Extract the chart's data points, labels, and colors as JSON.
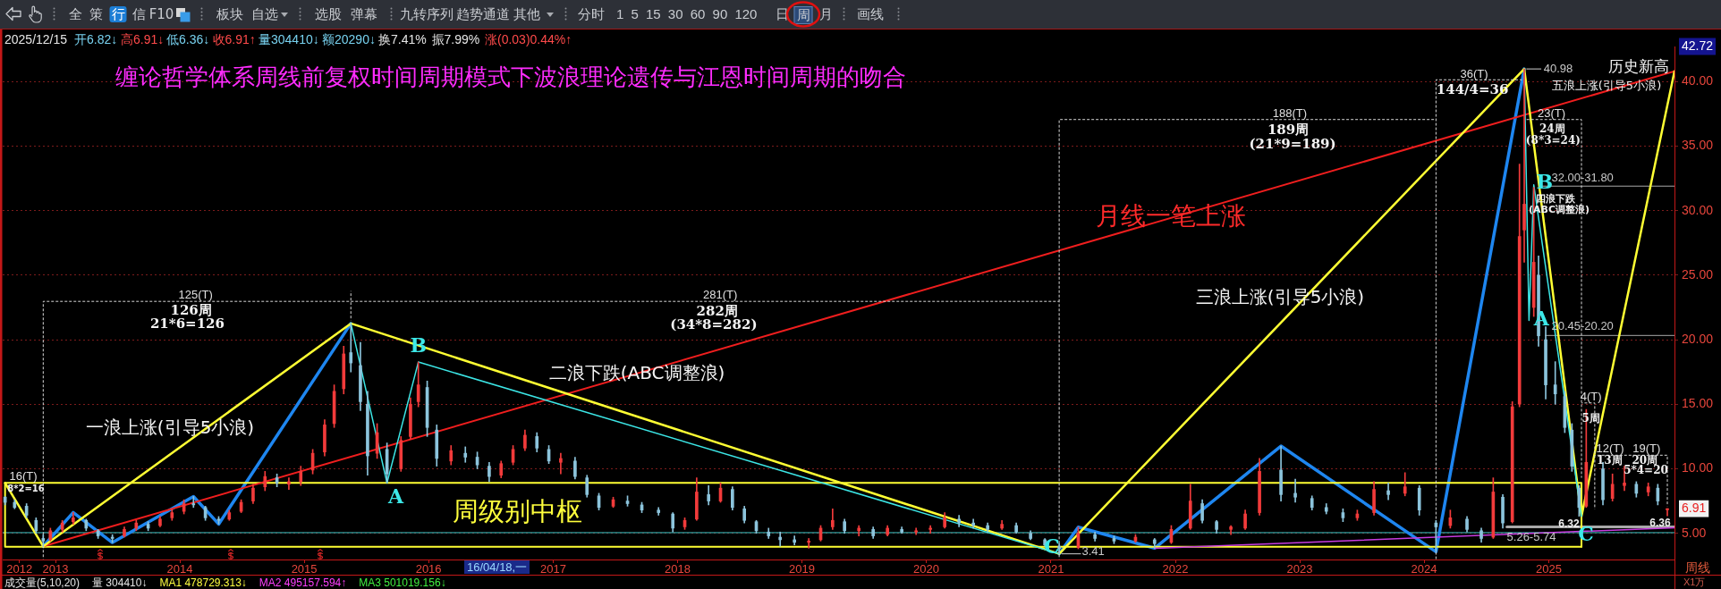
{
  "chart_data": {
    "type": "candlestick",
    "title": "缠论哲学体系周线前复权时间周期模式下波浪理论遗传与江恩时间周期的吻合",
    "x": [
      "2012-08-06",
      "2012-09-03",
      "2012-10-08",
      "2012-11-05",
      "2012-11-26",
      "2012-12-17",
      "2013-01-21",
      "2013-02-22",
      "2013-04-01",
      "2013-05-06",
      "2013-06-17",
      "2013-07-22",
      "2013-08-26",
      "2013-09-30",
      "2013-11-04",
      "2013-12-09",
      "2014-01-13",
      "2014-02-10",
      "2014-03-17",
      "2014-04-25",
      "2014-05-26",
      "2014-06-30",
      "2014-08-04",
      "2014-09-08",
      "2014-10-13",
      "2014-11-17",
      "2014-12-22",
      "2015-01-26",
      "2015-03-02",
      "2015-03-30",
      "2015-04-27",
      "2015-05-18",
      "2015-06-15",
      "2015-07-06",
      "2015-08-03",
      "2015-09-01",
      "2015-10-12",
      "2015-11-09",
      "2015-12-02",
      "2015-12-28",
      "2016-01-25",
      "2016-03-07",
      "2016-04-18",
      "2016-05-23",
      "2016-06-27",
      "2016-08-01",
      "2016-09-05",
      "2016-10-10",
      "2016-11-14",
      "2016-12-19",
      "2017-01-23",
      "2017-03-06",
      "2017-04-10",
      "2017-05-15",
      "2017-06-26",
      "2017-08-07",
      "2017-09-18",
      "2017-11-06",
      "2017-12-18",
      "2018-01-22",
      "2018-02-26",
      "2018-04-02",
      "2018-05-07",
      "2018-06-11",
      "2018-07-16",
      "2018-08-20",
      "2018-09-25",
      "2018-10-29",
      "2018-12-10",
      "2019-01-21",
      "2019-02-25",
      "2019-04-01",
      "2019-05-06",
      "2019-06-17",
      "2019-07-29",
      "2019-09-09",
      "2019-10-21",
      "2019-12-02",
      "2020-01-13",
      "2020-02-24",
      "2020-04-06",
      "2020-05-18",
      "2020-06-29",
      "2020-08-10",
      "2020-09-21",
      "2020-11-02",
      "2020-12-14",
      "2021-01-25",
      "2021-03-22",
      "2021-05-10",
      "2021-07-05",
      "2021-09-06",
      "2021-11-01",
      "2021-12-20",
      "2022-02-14",
      "2022-03-21",
      "2022-05-02",
      "2022-06-13",
      "2022-07-25",
      "2022-09-05",
      "2022-11-07",
      "2022-12-19",
      "2023-02-06",
      "2023-03-20",
      "2023-05-08",
      "2023-06-19",
      "2023-08-07",
      "2023-09-18",
      "2023-11-06",
      "2023-12-18",
      "2024-02-05",
      "2024-03-18",
      "2024-05-06",
      "2024-06-17",
      "2024-07-22",
      "2024-08-19",
      "2024-09-16",
      "2024-10-07",
      "2024-10-21",
      "2024-11-18",
      "2024-12-02",
      "2024-12-23",
      "2025-01-20",
      "2025-02-17",
      "2025-03-10",
      "2025-03-31",
      "2025-04-21",
      "2025-06-09",
      "2025-07-07",
      "2025-08-11",
      "2025-09-15",
      "2025-10-20",
      "2025-11-17",
      "2025-12-15"
    ],
    "ohlc": [
      [
        7.8,
        7.85,
        7.2,
        7.4
      ],
      [
        7.4,
        7.6,
        6.9,
        7.0
      ],
      [
        7.1,
        7.3,
        6.2,
        6.4
      ],
      [
        6.0,
        6.2,
        5.0,
        5.2
      ],
      [
        4.6,
        4.9,
        3.99,
        4.4
      ],
      [
        4.5,
        5.4,
        4.4,
        5.2
      ],
      [
        5.3,
        6.0,
        5.1,
        5.8
      ],
      [
        5.9,
        6.62,
        5.7,
        6.2
      ],
      [
        6.0,
        6.1,
        5.2,
        5.4
      ],
      [
        5.2,
        5.3,
        4.6,
        4.8
      ],
      [
        4.7,
        4.9,
        4.28,
        4.6
      ],
      [
        4.8,
        5.5,
        4.7,
        5.3
      ],
      [
        5.4,
        6.0,
        5.2,
        5.8
      ],
      [
        5.7,
        5.9,
        5.2,
        5.4
      ],
      [
        5.6,
        6.3,
        5.5,
        6.1
      ],
      [
        6.2,
        6.9,
        6.0,
        6.6
      ],
      [
        6.7,
        7.6,
        6.5,
        7.3
      ],
      [
        7.3,
        7.85,
        7.0,
        7.2
      ],
      [
        7.0,
        7.1,
        6.0,
        6.2
      ],
      [
        6.1,
        6.3,
        5.71,
        6.0
      ],
      [
        6.1,
        6.8,
        6.0,
        6.6
      ],
      [
        6.7,
        7.6,
        6.6,
        7.4
      ],
      [
        7.5,
        8.8,
        7.3,
        8.5
      ],
      [
        8.6,
        9.8,
        8.3,
        9.4
      ],
      [
        9.3,
        9.6,
        8.6,
        8.9
      ],
      [
        8.8,
        9.3,
        8.4,
        9.0
      ],
      [
        9.0,
        10.2,
        8.7,
        9.8
      ],
      [
        9.9,
        11.5,
        9.6,
        11.2
      ],
      [
        11.3,
        13.8,
        11.0,
        13.4
      ],
      [
        13.5,
        16.5,
        13.2,
        16.0
      ],
      [
        16.2,
        19.5,
        15.8,
        18.9
      ],
      [
        19.0,
        21.26,
        17.5,
        18.2
      ],
      [
        18.0,
        19.8,
        14.5,
        15.2
      ],
      [
        15.0,
        16.0,
        9.5,
        11.0
      ],
      [
        11.2,
        13.5,
        10.8,
        12.8
      ],
      [
        11.5,
        12.0,
        8.9,
        9.6
      ],
      [
        10.0,
        12.5,
        9.8,
        12.2
      ],
      [
        12.5,
        15.5,
        12.3,
        15.0
      ],
      [
        15.2,
        18.27,
        14.8,
        16.5
      ],
      [
        16.3,
        16.8,
        12.5,
        13.2
      ],
      [
        13.0,
        13.4,
        10.2,
        10.8
      ],
      [
        10.6,
        11.8,
        10.3,
        11.4
      ],
      [
        11.2,
        11.7,
        10.5,
        10.9
      ],
      [
        10.9,
        11.3,
        10.0,
        10.3
      ],
      [
        10.2,
        10.5,
        9.0,
        9.4
      ],
      [
        9.5,
        10.6,
        9.3,
        10.4
      ],
      [
        10.5,
        11.8,
        10.3,
        11.5
      ],
      [
        11.6,
        13.0,
        11.4,
        12.6
      ],
      [
        12.5,
        12.8,
        11.3,
        11.6
      ],
      [
        11.5,
        11.8,
        10.4,
        10.6
      ],
      [
        10.5,
        11.2,
        9.6,
        10.8
      ],
      [
        10.6,
        10.9,
        9.2,
        9.4
      ],
      [
        9.3,
        9.5,
        7.8,
        8.0
      ],
      [
        7.9,
        8.1,
        6.8,
        7.0
      ],
      [
        7.1,
        7.8,
        7.0,
        7.6
      ],
      [
        7.5,
        7.9,
        7.1,
        7.3
      ],
      [
        7.2,
        7.4,
        6.6,
        6.8
      ],
      [
        6.8,
        7.0,
        6.4,
        6.6
      ],
      [
        6.5,
        6.6,
        5.1,
        5.4
      ],
      [
        5.5,
        6.2,
        5.3,
        6.0
      ],
      [
        6.1,
        9.3,
        6.0,
        8.2
      ],
      [
        8.0,
        8.7,
        7.2,
        7.5
      ],
      [
        7.5,
        8.9,
        7.4,
        8.5
      ],
      [
        8.4,
        8.6,
        6.8,
        7.0
      ],
      [
        6.9,
        7.1,
        5.8,
        6.0
      ],
      [
        5.9,
        6.0,
        5.0,
        5.2
      ],
      [
        5.1,
        5.4,
        4.6,
        4.8
      ],
      [
        4.7,
        5.1,
        4.0,
        4.5
      ],
      [
        4.5,
        4.8,
        4.1,
        4.3
      ],
      [
        4.3,
        4.6,
        3.85,
        4.4
      ],
      [
        4.5,
        5.6,
        4.4,
        5.4
      ],
      [
        5.5,
        6.9,
        5.3,
        6.0
      ],
      [
        5.9,
        6.1,
        5.0,
        5.2
      ],
      [
        5.2,
        5.6,
        4.8,
        5.4
      ],
      [
        5.3,
        5.5,
        4.6,
        4.8
      ],
      [
        4.9,
        5.6,
        4.8,
        5.4
      ],
      [
        5.3,
        5.5,
        5.0,
        5.1
      ],
      [
        5.1,
        5.4,
        4.9,
        5.2
      ],
      [
        5.3,
        5.6,
        5.0,
        5.4
      ],
      [
        5.5,
        6.6,
        5.4,
        6.2
      ],
      [
        6.1,
        6.4,
        5.5,
        5.8
      ],
      [
        5.8,
        6.1,
        5.4,
        5.6
      ],
      [
        5.6,
        5.8,
        5.1,
        5.3
      ],
      [
        5.4,
        6.0,
        5.3,
        5.7
      ],
      [
        5.6,
        5.8,
        5.0,
        5.1
      ],
      [
        5.0,
        5.2,
        4.5,
        4.6
      ],
      [
        4.5,
        4.6,
        4.0,
        4.1
      ],
      [
        4.0,
        4.2,
        3.41,
        3.8
      ],
      [
        3.9,
        5.48,
        3.8,
        5.0
      ],
      [
        4.9,
        5.1,
        4.4,
        4.6
      ],
      [
        4.6,
        4.8,
        4.2,
        4.4
      ],
      [
        4.4,
        4.9,
        4.3,
        4.7
      ],
      [
        4.5,
        4.6,
        3.85,
        4.2
      ],
      [
        4.3,
        5.6,
        4.2,
        5.3
      ],
      [
        5.4,
        8.8,
        5.3,
        7.5
      ],
      [
        7.3,
        7.6,
        5.8,
        6.0
      ],
      [
        5.9,
        6.0,
        5.0,
        5.3
      ],
      [
        5.3,
        5.6,
        4.9,
        5.5
      ],
      [
        5.4,
        6.8,
        5.3,
        6.5
      ],
      [
        6.6,
        10.8,
        6.4,
        9.8
      ],
      [
        9.9,
        11.76,
        7.5,
        8.0
      ],
      [
        8.1,
        9.2,
        7.4,
        7.8
      ],
      [
        7.7,
        7.9,
        6.8,
        7.0
      ],
      [
        7.0,
        7.3,
        6.5,
        6.7
      ],
      [
        6.6,
        6.9,
        5.9,
        6.2
      ],
      [
        6.2,
        6.8,
        6.0,
        6.5
      ],
      [
        6.6,
        9.0,
        6.4,
        8.4
      ],
      [
        8.3,
        8.9,
        7.6,
        8.0
      ],
      [
        8.1,
        9.7,
        7.9,
        8.6
      ],
      [
        8.5,
        8.7,
        6.4,
        6.8
      ],
      [
        5.8,
        6.0,
        3.57,
        5.5
      ],
      [
        5.6,
        6.8,
        5.4,
        6.2
      ],
      [
        6.1,
        6.3,
        5.1,
        5.3
      ],
      [
        5.2,
        5.4,
        4.3,
        4.6
      ],
      [
        4.7,
        9.3,
        4.6,
        8.2
      ],
      [
        7.8,
        8.0,
        5.4,
        5.8
      ],
      [
        5.9,
        15.2,
        5.8,
        14.8
      ],
      [
        15.0,
        33.6,
        14.8,
        28.0
      ],
      [
        28.5,
        40.98,
        26.0,
        30.5
      ],
      [
        22.5,
        31.8,
        21.8,
        26.0
      ],
      [
        25.0,
        26.5,
        19.5,
        20.3
      ],
      [
        20.0,
        21.0,
        15.4,
        16.5
      ],
      [
        16.5,
        18.3,
        15.0,
        15.8
      ],
      [
        15.6,
        16.0,
        12.8,
        13.2
      ],
      [
        13.0,
        13.5,
        9.8,
        10.2
      ],
      [
        8.5,
        8.7,
        6.32,
        7.0
      ],
      [
        7.1,
        14.6,
        7.0,
        10.5
      ],
      [
        10.0,
        10.5,
        7.2,
        7.6
      ],
      [
        7.7,
        9.6,
        7.5,
        8.8
      ],
      [
        8.7,
        10.2,
        8.3,
        8.9
      ],
      [
        8.8,
        9.0,
        7.8,
        8.1
      ],
      [
        8.2,
        8.9,
        7.9,
        8.6
      ],
      [
        8.5,
        8.8,
        7.2,
        7.5
      ],
      [
        6.82,
        6.91,
        6.36,
        6.91
      ]
    ],
    "series": [
      {
        "type": "line",
        "color": "#d8d8d8",
        "line_style": "dotted",
        "x": [
          "2012-11-26",
          "2012-11-26",
          "2021-01-25",
          "2021-01-25"
        ],
        "values": [
          3.0,
          22.97,
          22.97,
          3.0
        ]
      },
      {
        "type": "line",
        "color": "#d8d8d8",
        "line_style": "dotted",
        "x": [
          "2021-01-25",
          "2021-01-25",
          "2024-02-05"
        ],
        "values": [
          22.97,
          37.06,
          37.06
        ]
      },
      {
        "type": "line",
        "color": "#d8d8d8",
        "line_style": "dotted",
        "x": [
          "2024-02-05",
          "2024-02-05",
          "2024-10-14"
        ],
        "values": [
          3.0,
          40.14,
          40.14
        ]
      },
      {
        "type": "line",
        "color": "#d8d8d8",
        "line_style": "dotted",
        "x": [
          "2024-10-28",
          "2025-04-07",
          "2025-04-07"
        ],
        "values": [
          37.06,
          37.06,
          9.3
        ]
      },
      {
        "type": "line",
        "color": "#d8d8d8",
        "line_style": "dotted",
        "x": [
          "2015-05-18",
          "2015-05-18"
        ],
        "values": [
          23.77,
          21.5
        ]
      },
      {
        "type": "line",
        "color": "#d8d8d8",
        "line_style": "dotted",
        "x": [
          "2025-04-07",
          "2025-05-16",
          "2025-05-16"
        ],
        "values": [
          15.1,
          15.1,
          6.87
        ]
      },
      {
        "type": "line",
        "color": "#d8d8d8",
        "line_style": "dotted",
        "x": [
          "2025-05-16",
          "2025-12-15",
          "2025-12-15"
        ],
        "values": [
          11.05,
          11.05,
          7.1
        ]
      },
      {
        "type": "line",
        "color": "#d0d0d0",
        "x": [
          "2024-10-28",
          "2024-12-09"
        ],
        "values": [
          40.98,
          40.98
        ]
      },
      {
        "type": "line",
        "color": "#d0d0d0",
        "x": [
          "2021-02-01",
          "2021-03-29"
        ],
        "values": [
          3.41,
          3.41
        ]
      },
      {
        "type": "line",
        "color": "#3ce6e6",
        "x": [
          "2024-10-21",
          "2024-11-04",
          "2024-11-18",
          "2025-04-07"
        ],
        "values": [
          40.98,
          21.5,
          32.0,
          6.32
        ]
      },
      {
        "type": "line",
        "color": "#3ce6e6",
        "x": [
          "2015-05-18",
          "2015-09-01",
          "2015-12-02",
          "2021-01-25"
        ],
        "values": [
          21.26,
          8.9,
          18.27,
          3.41
        ]
      },
      {
        "type": "line",
        "color": "#ffff33",
        "x": [
          "2012-08-06",
          "2012-11-26",
          "2015-05-18",
          "2021-01-25",
          "2024-10-21",
          "2025-04-07",
          "2026-01-05"
        ],
        "values": [
          8.9,
          3.99,
          21.26,
          3.41,
          40.98,
          6.32,
          40.8
        ]
      },
      {
        "type": "line",
        "color": "#f01e1e",
        "x": [
          "2012-11-26",
          "2026-01-05"
        ],
        "values": [
          3.99,
          40.8
        ]
      },
      {
        "type": "line",
        "color": "#c83ce0",
        "x": [
          "2021-11-01",
          "2026-01-05"
        ],
        "values": [
          3.84,
          5.43
        ]
      },
      {
        "type": "line",
        "color": "#ffff33",
        "x": [
          "2012-08-06",
          "2025-04-07",
          "2025-04-07"
        ],
        "values": [
          8.9,
          8.9,
          3.95
        ]
      },
      {
        "type": "line",
        "color": "#ffff33",
        "x": [
          "2012-08-06",
          "2012-08-06",
          "2025-04-07"
        ],
        "values": [
          8.9,
          3.95,
          3.95
        ]
      },
      {
        "type": "line",
        "color": "#1e86f0",
        "x": [
          "2012-11-26",
          "2013-02-22",
          "2013-06-17",
          "2014-02-10",
          "2014-04-25",
          "2015-05-18"
        ],
        "values": [
          3.99,
          6.62,
          4.28,
          7.85,
          5.71,
          21.26
        ]
      },
      {
        "type": "line",
        "color": "#1e86f0",
        "x": [
          "2021-01-25",
          "2021-03-22",
          "2021-11-01",
          "2022-11-07",
          "2024-02-05",
          "2024-10-21"
        ],
        "values": [
          3.41,
          5.48,
          3.85,
          11.76,
          3.57,
          40.98
        ]
      },
      {
        "type": "line",
        "color": "#a8a8a8",
        "x": [
          "2024-12-05",
          "2026-01-05"
        ],
        "values": [
          31.9,
          31.9
        ]
      },
      {
        "type": "line",
        "color": "#a8a8a8",
        "x": [
          "2024-12-21",
          "2026-01-05"
        ],
        "values": [
          20.33,
          20.33
        ]
      },
      {
        "type": "line",
        "color": "#a8a8a8",
        "x": [
          "2024-08-31",
          "2026-01-05"
        ],
        "values": [
          5.5,
          5.5
        ]
      }
    ],
    "xlim": [
      "2012-07-30",
      "2026-01-05"
    ],
    "xticks": [
      {
        "value": "2012-09-17",
        "label": "2012"
      },
      "2013",
      "2014",
      "2015",
      "2016",
      "2017",
      "2018",
      "2019",
      "2020",
      "2021",
      "2022",
      "2023",
      "2024",
      "2025"
    ],
    "ylim": [
      2.97,
      42.72
    ],
    "yticks": [
      {
        "value": 5,
        "label": "5.00"
      },
      {
        "value": 10,
        "label": "10.00"
      },
      {
        "value": 15,
        "label": "15.00"
      },
      {
        "value": 20,
        "label": "20.00"
      },
      {
        "value": 25,
        "label": "25.00"
      },
      {
        "value": 30,
        "label": "30.00"
      },
      {
        "value": 35,
        "label": "35.00"
      },
      {
        "value": 40,
        "label": "40.00"
      },
      {
        "value": 42.72,
        "label": "42.72"
      },
      {
        "value": 6.91,
        "label": "6.91"
      }
    ],
    "grid": "y",
    "legend": false,
    "ref_lines": [
      {
        "axis": "y",
        "value": 5.05,
        "color": "#3cc8c8"
      }
    ],
    "annotations": [
      "全",
      "策",
      "行",
      "信",
      "F10",
      "板块",
      "自选",
      "选股",
      "弹幕",
      "九转序列",
      "趋势通道",
      "其他",
      "分时",
      "1 5 15 30 60 90 120",
      "日",
      "周",
      "月",
      "画线",
      "2025/12/15",
      "开6.82↓",
      "高6.91↓",
      "低6.36↓",
      "收6.91↑",
      "量304410↓",
      "额20290↓",
      "换7.41%",
      "振7.99%",
      "涨(0.03)0.44%↑",
      "周线",
      "X1万",
      "16/04/18,一",
      "成交量(5,10,20)",
      "量 304410↓",
      "MA1 478729.313↓",
      "MA2 495157.594↑",
      "MA3 501019.156↓",
      "一浪上涨(引导5小浪)",
      "二浪下跌(ABC调整浪)",
      "三浪上涨(引导5小浪)",
      "五浪上涨(引导5小浪)",
      "历史新高",
      "四浪下跌",
      "(ABC调整浪)",
      "周级别中枢",
      "16(T)",
      "8*2=16",
      {
        "text": "月线一笔上涨",
        "x": "2021-12-19",
        "y": 29.44
      },
      {
        "text": "A",
        "x": "2015-09-01",
        "y": 8.9
      },
      {
        "text": "B",
        "x": "2015-12-02",
        "y": 18.27
      },
      {
        "text": "C",
        "x": "2021-01-25",
        "y": 3.41
      },
      {
        "text": "A",
        "x": "2024-11-04",
        "y": 21.5
      },
      {
        "text": "B",
        "x": "2024-11-18",
        "y": 32.0
      },
      {
        "text": "C",
        "x": "2025-04-07",
        "y": 6.32
      },
      {
        "text": "40.98",
        "x": "2024-10-21",
        "y": 40.98
      },
      {
        "text": "3.41",
        "x": "2021-01-25",
        "y": 3.41
      },
      {
        "text": "6.32",
        "x": "2025-04-07",
        "y": 6.32
      },
      {
        "text": "6.36",
        "x": "2025-12-15",
        "y": 6.36
      },
      {
        "text": "32.00-31.80",
        "x": "2025-04-10",
        "y": 31.9
      },
      {
        "text": "20.45-20.20",
        "x": "2025-04-10",
        "y": 20.33
      },
      {
        "text": "5.26-5.74",
        "x": "2024-11-11",
        "y": 5.5
      },
      {
        "text": "125(T)",
        "x": "2014-02-16",
        "y": 22.97
      },
      {
        "text": "126周",
        "x": "2014-02-03",
        "y": 22.97
      },
      {
        "text": "21*6=126",
        "x": "2014-01-23",
        "y": 22.97
      },
      {
        "text": "281(T)",
        "x": "2018-05-06",
        "y": 22.97
      },
      {
        "text": "282周",
        "x": "2018-04-27",
        "y": 22.97
      },
      {
        "text": "(34*8=282)",
        "x": "2018-04-17",
        "y": 22.97
      },
      {
        "text": "188(T)",
        "x": "2022-12-03",
        "y": 37.06
      },
      {
        "text": "189周",
        "x": "2022-11-28",
        "y": 37.06
      },
      {
        "text": "(21*9=189)",
        "x": "2022-12-11",
        "y": 37.06
      },
      {
        "text": "36(T)",
        "x": "2024-05-27",
        "y": 40.14
      },
      {
        "text": "144/4=36",
        "x": "2024-05-22",
        "y": 40.14
      },
      {
        "text": "23(T)",
        "x": "2025-01-09",
        "y": 37.06
      },
      {
        "text": "24周",
        "x": "2025-01-11",
        "y": 37.06
      },
      {
        "text": "(8*3=24)",
        "x": "2025-01-14",
        "y": 37.06
      },
      {
        "text": "4(T)",
        "x": "2025-05-05",
        "y": 15.1
      },
      {
        "text": "5周",
        "x": "2025-05-05",
        "y": 15.1
      },
      {
        "text": "12(T)",
        "x": "2025-06-30",
        "y": 11.05
      },
      {
        "text": "13周",
        "x": "2025-06-28",
        "y": 11.05
      },
      {
        "text": "19(T)",
        "x": "2025-10-15",
        "y": 11.05
      },
      {
        "text": "20周",
        "x": "2025-10-10",
        "y": 11.05
      },
      {
        "text": "5*4=20",
        "x": "2025-10-13",
        "y": 11.05
      }
    ]
  }
}
